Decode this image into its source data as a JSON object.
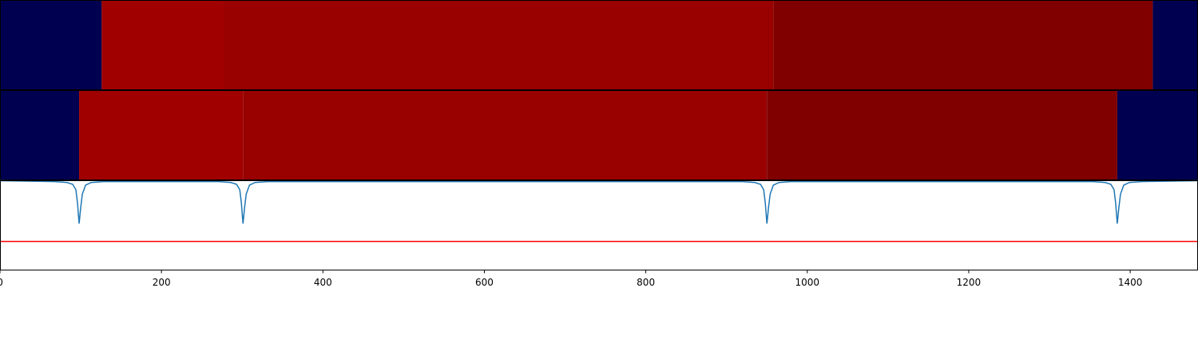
{
  "chart_data": [
    {
      "type": "heatmap",
      "segments": [
        {
          "start": 0,
          "end": 126,
          "color": "#000050"
        },
        {
          "start": 126,
          "end": 277,
          "color": "#a00000"
        },
        {
          "start": 277,
          "end": 958,
          "color": "#990000"
        },
        {
          "start": 958,
          "end": 1428,
          "color": "#800000"
        },
        {
          "start": 1428,
          "end": 1484,
          "color": "#000050"
        }
      ]
    },
    {
      "type": "heatmap",
      "segments": [
        {
          "start": 0,
          "end": 98,
          "color": "#000050"
        },
        {
          "start": 98,
          "end": 301,
          "color": "#a00000"
        },
        {
          "start": 301,
          "end": 950,
          "color": "#990000"
        },
        {
          "start": 950,
          "end": 1384,
          "color": "#800000"
        },
        {
          "start": 1384,
          "end": 1484,
          "color": "#000050"
        }
      ]
    },
    {
      "type": "line",
      "color": "#1f77b4",
      "x": [
        0,
        68,
        83,
        90,
        94,
        96,
        98,
        100,
        102,
        106,
        113,
        128,
        271,
        286,
        293,
        297,
        299,
        301,
        303,
        305,
        309,
        316,
        331,
        920,
        935,
        942,
        946,
        948,
        950,
        952,
        954,
        958,
        965,
        980,
        1354,
        1369,
        1376,
        1380,
        1382,
        1384,
        1386,
        1388,
        1392,
        1399,
        1414,
        1484
      ],
      "values": [
        1.0,
        0.99,
        0.98,
        0.96,
        0.9,
        0.75,
        0.52,
        0.7,
        0.85,
        0.95,
        0.98,
        0.99,
        0.99,
        0.98,
        0.96,
        0.9,
        0.75,
        0.52,
        0.7,
        0.85,
        0.95,
        0.98,
        0.99,
        0.99,
        0.98,
        0.96,
        0.9,
        0.75,
        0.52,
        0.7,
        0.85,
        0.95,
        0.98,
        0.99,
        0.99,
        0.98,
        0.96,
        0.9,
        0.75,
        0.52,
        0.7,
        0.85,
        0.95,
        0.98,
        0.99,
        1.0
      ],
      "threshold": {
        "value": 0.32,
        "color": "#ff0000"
      },
      "ylim": [
        0,
        1
      ],
      "xlim": [
        0,
        1484
      ],
      "xticks": [
        0,
        200,
        400,
        600,
        800,
        1000,
        1200,
        1400
      ]
    }
  ]
}
